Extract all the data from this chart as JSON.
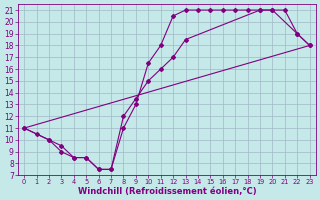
{
  "xlabel": "Windchill (Refroidissement éolien,°C)",
  "line1": {
    "x": [
      0,
      1,
      2,
      3,
      4,
      5,
      6,
      7,
      8,
      9,
      10,
      11,
      12,
      13,
      14,
      15,
      16,
      17,
      18,
      19,
      20,
      21,
      22,
      23
    ],
    "y": [
      11,
      10.5,
      10,
      9.5,
      8.5,
      8.5,
      7.5,
      7.5,
      11,
      13,
      16.5,
      18,
      20.5,
      21,
      21,
      21,
      21,
      21,
      21,
      21,
      21,
      21,
      19,
      18
    ],
    "color": "#800080",
    "marker": "D",
    "markersize": 2.0,
    "linewidth": 0.8
  },
  "line2": {
    "x": [
      0,
      2,
      3,
      4,
      5,
      6,
      7,
      8,
      9,
      10,
      11,
      12,
      13,
      19,
      20,
      22,
      23
    ],
    "y": [
      11,
      10,
      9,
      8.5,
      8.5,
      7.5,
      7.5,
      12,
      13.5,
      15,
      16,
      17,
      18.5,
      21,
      21,
      19,
      18
    ],
    "color": "#800080",
    "marker": "D",
    "markersize": 2.0,
    "linewidth": 0.8
  },
  "line3": {
    "x": [
      0,
      23
    ],
    "y": [
      11,
      18
    ],
    "color": "#800080",
    "marker": null,
    "linewidth": 0.8
  },
  "xlim": [
    -0.5,
    23.5
  ],
  "ylim": [
    7,
    21.5
  ],
  "xticks": [
    0,
    1,
    2,
    3,
    4,
    5,
    6,
    7,
    8,
    9,
    10,
    11,
    12,
    13,
    14,
    15,
    16,
    17,
    18,
    19,
    20,
    21,
    22,
    23
  ],
  "yticks": [
    7,
    8,
    9,
    10,
    11,
    12,
    13,
    14,
    15,
    16,
    17,
    18,
    19,
    20,
    21
  ],
  "bg_color": "#c5e8e8",
  "grid_color": "#a0b8c8",
  "tick_color": "#800080",
  "spine_color": "#800080",
  "xlabel_fontsize": 6.0,
  "ytick_fontsize": 5.5,
  "xtick_fontsize": 4.8
}
